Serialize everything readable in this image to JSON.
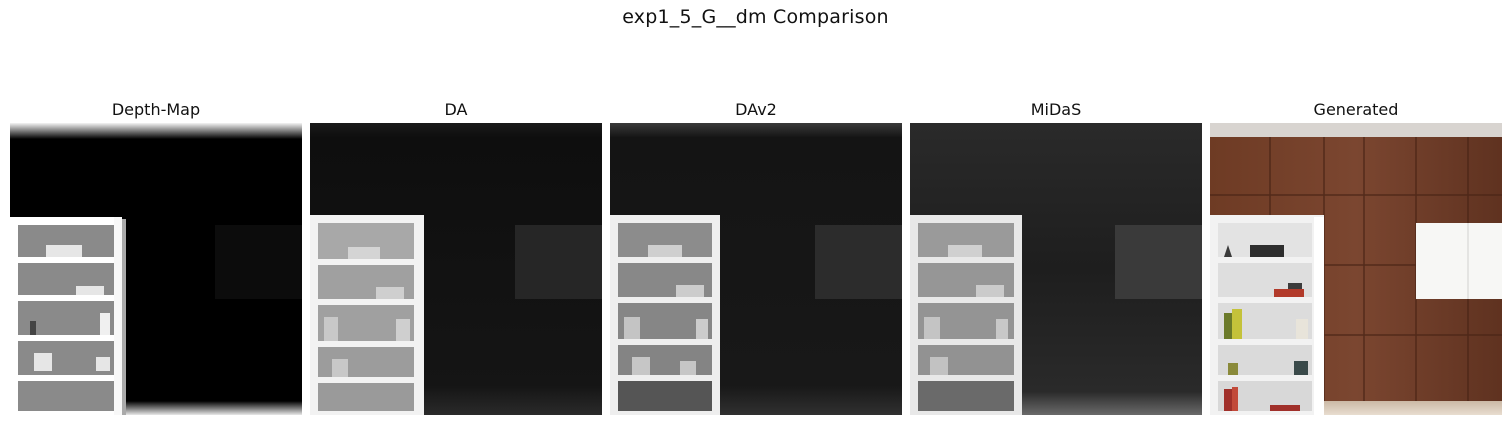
{
  "figure": {
    "title": "exp1_5_G__dm Comparison"
  },
  "panels": [
    {
      "title": "Depth-Map",
      "kind": "depth-map",
      "image_name": "depth-map-image"
    },
    {
      "title": "DA",
      "kind": "depth-estimate",
      "image_name": "da-depth-image"
    },
    {
      "title": "DAv2",
      "kind": "depth-estimate",
      "image_name": "dav2-depth-image"
    },
    {
      "title": "MiDaS",
      "kind": "depth-estimate",
      "image_name": "midas-depth-image"
    },
    {
      "title": "Generated",
      "kind": "color-render",
      "image_name": "generated-image"
    }
  ]
}
